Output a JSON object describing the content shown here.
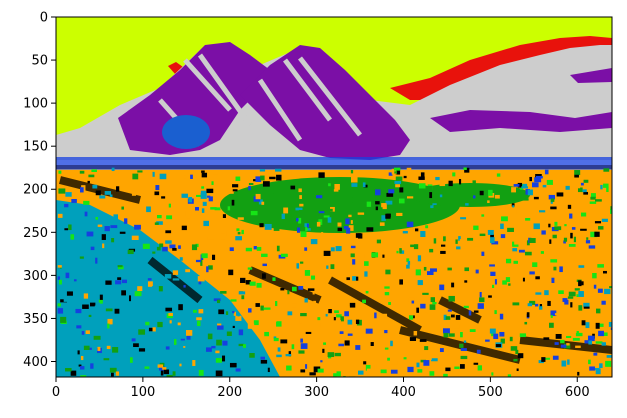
{
  "figure": {
    "kind": "image plot (imshow) of a color-segmented landscape",
    "x_ticks": [
      "0",
      "100",
      "200",
      "300",
      "400",
      "500",
      "600"
    ],
    "y_ticks": [
      "0",
      "50",
      "100",
      "150",
      "200",
      "250",
      "300",
      "350",
      "400"
    ],
    "xlim": [
      0,
      640
    ],
    "ylim_top_to_bottom": [
      0,
      418
    ],
    "palette": {
      "sky": "#ccff00",
      "mountain_purple": "#7b0fa6",
      "snow_gray": "#cdcdcd",
      "red_patch": "#e8120c",
      "orange_field": "#ffa500",
      "green_meadow": "#12a012",
      "bright_green": "#16e516",
      "blue": "#1540e0",
      "teal": "#00a0bc",
      "black": "#000000"
    }
  }
}
